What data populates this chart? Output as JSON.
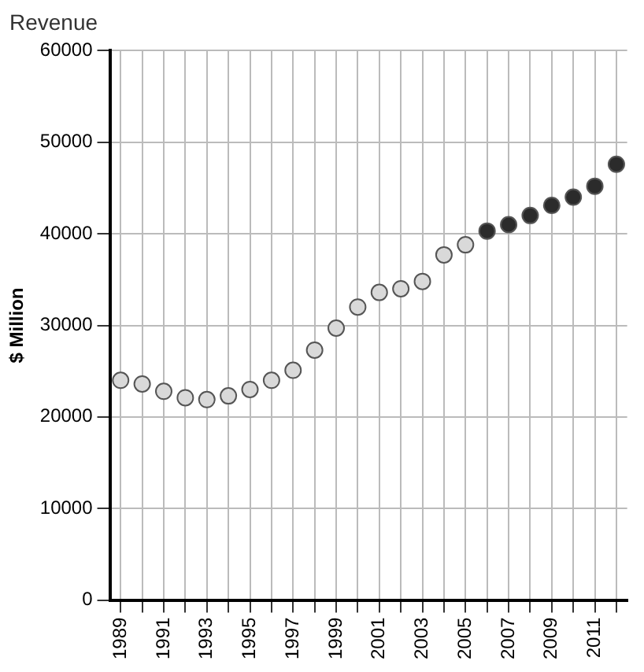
{
  "chart_data": {
    "type": "scatter",
    "title": "Revenue",
    "ylabel": "$ Million",
    "categories": [
      "1989",
      null,
      "1991",
      null,
      "1993",
      null,
      "1995",
      null,
      "1997",
      null,
      "1999",
      null,
      "2001",
      null,
      "2003",
      null,
      "2005",
      null,
      "2007",
      null,
      "2009",
      null,
      "2011",
      null
    ],
    "series": [
      {
        "color": "#d9d9d9",
        "values": [
          24000,
          23600,
          22800,
          22100,
          21900,
          22300,
          23000,
          24000,
          25100,
          27300,
          29700,
          32000,
          33600,
          34000,
          34800,
          37700,
          38800,
          null,
          null,
          null,
          null,
          null,
          null,
          null
        ]
      },
      {
        "color": "#2b2b2b",
        "values": [
          null,
          null,
          null,
          null,
          null,
          null,
          null,
          null,
          null,
          null,
          null,
          null,
          null,
          null,
          null,
          null,
          null,
          40300,
          41000,
          42000,
          43100,
          44000,
          45200,
          47600
        ]
      }
    ],
    "ylim": [
      0,
      60000
    ],
    "yticks": [
      0,
      10000,
      20000,
      30000,
      40000,
      50000,
      60000
    ],
    "grid": true,
    "legend": false,
    "marker": "circle"
  }
}
